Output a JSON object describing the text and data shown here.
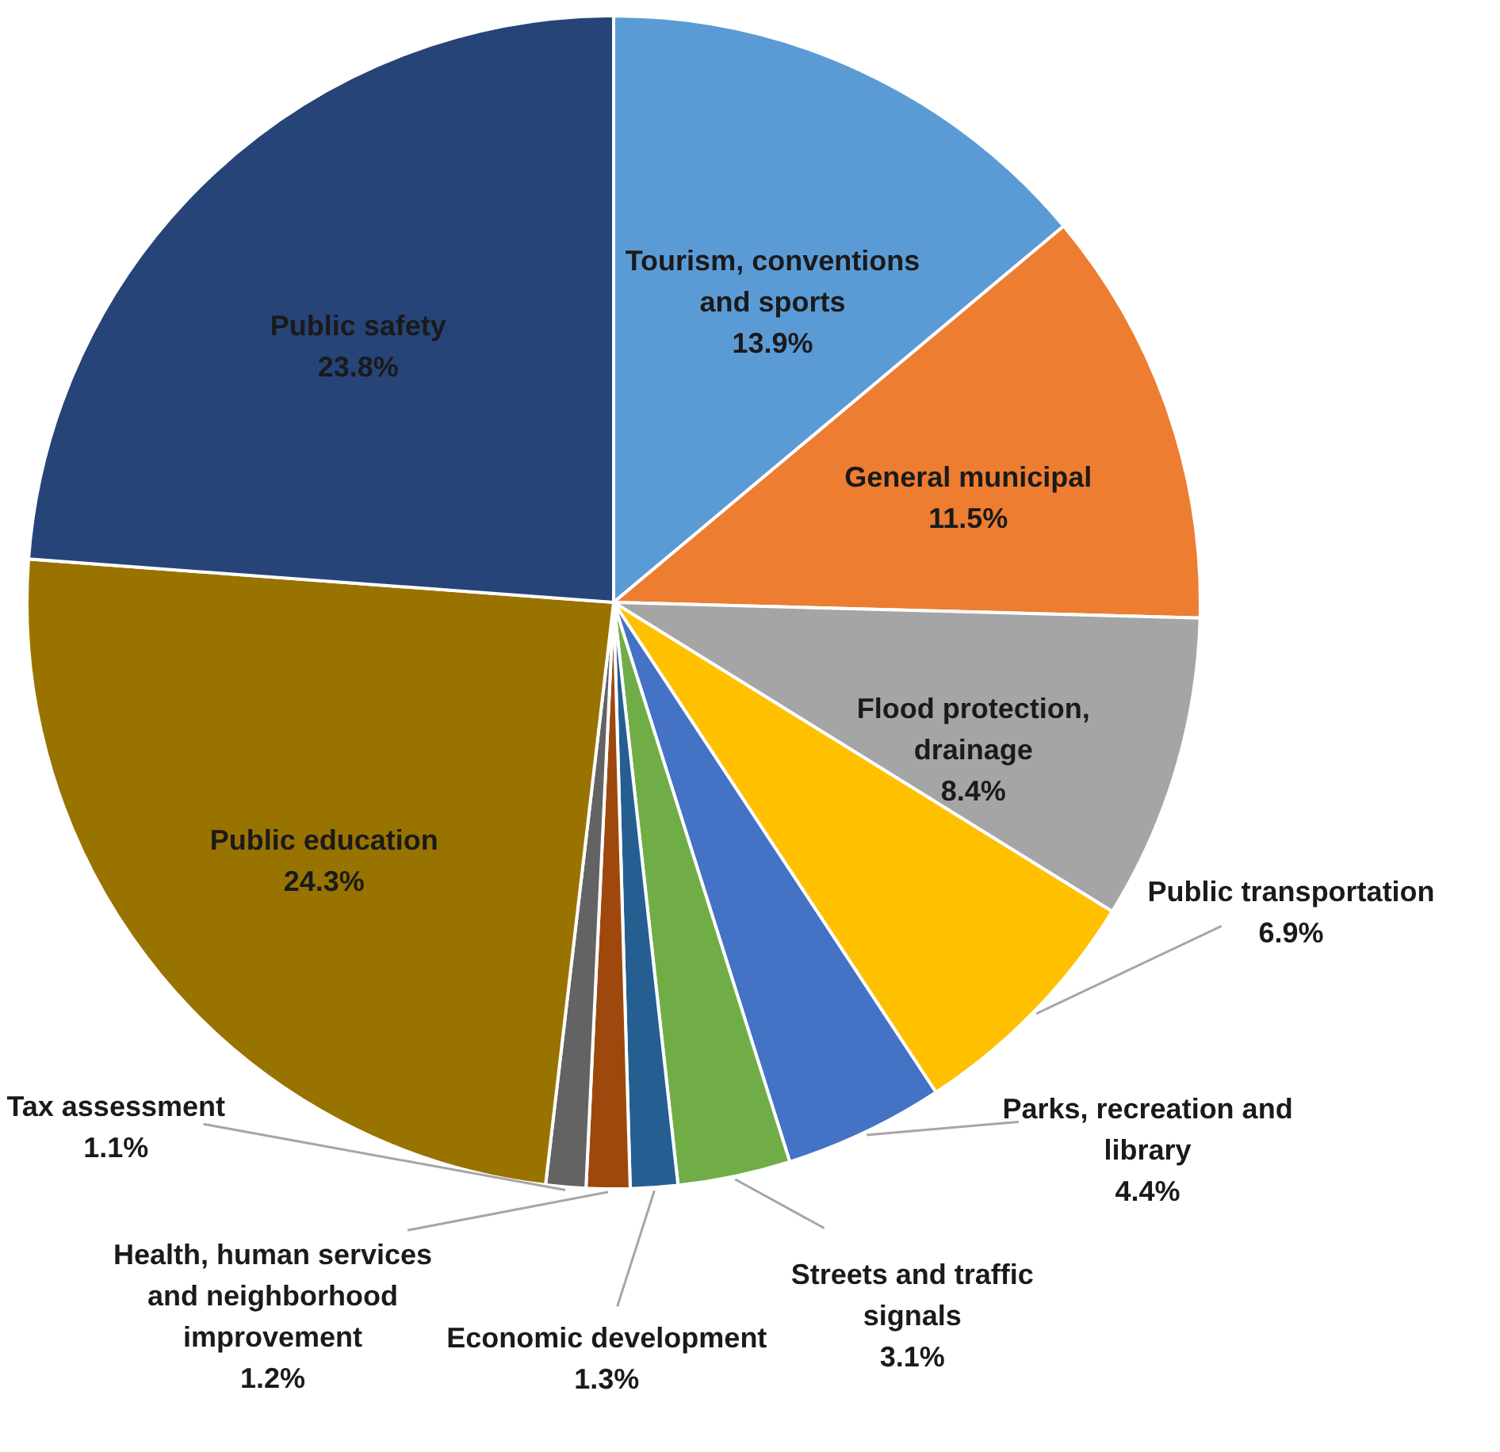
{
  "chart_data": {
    "type": "pie",
    "categories": [
      "Tourism, conventions and sports",
      "General municipal",
      "Flood protection, drainage",
      "Public transportation",
      "Parks, recreation and library",
      "Streets and traffic signals",
      "Economic development",
      "Health, human services and neighborhood improvement",
      "Tax assessment",
      "Public education",
      "Public safety"
    ],
    "values": [
      13.9,
      11.5,
      8.4,
      6.9,
      4.4,
      3.1,
      1.3,
      1.2,
      1.1,
      24.3,
      23.8
    ],
    "value_labels": [
      "13.9%",
      "11.5%",
      "8.4%",
      "6.9%",
      "4.4%",
      "3.1%",
      "1.3%",
      "1.2%",
      "1.1%",
      "24.3%",
      "23.8%"
    ],
    "colors": [
      "#5b9bd5",
      "#ed7d31",
      "#a5a5a5",
      "#ffc000",
      "#4472c4",
      "#70ad47",
      "#255e91",
      "#9e480e",
      "#636363",
      "#997300",
      "#264478"
    ]
  }
}
